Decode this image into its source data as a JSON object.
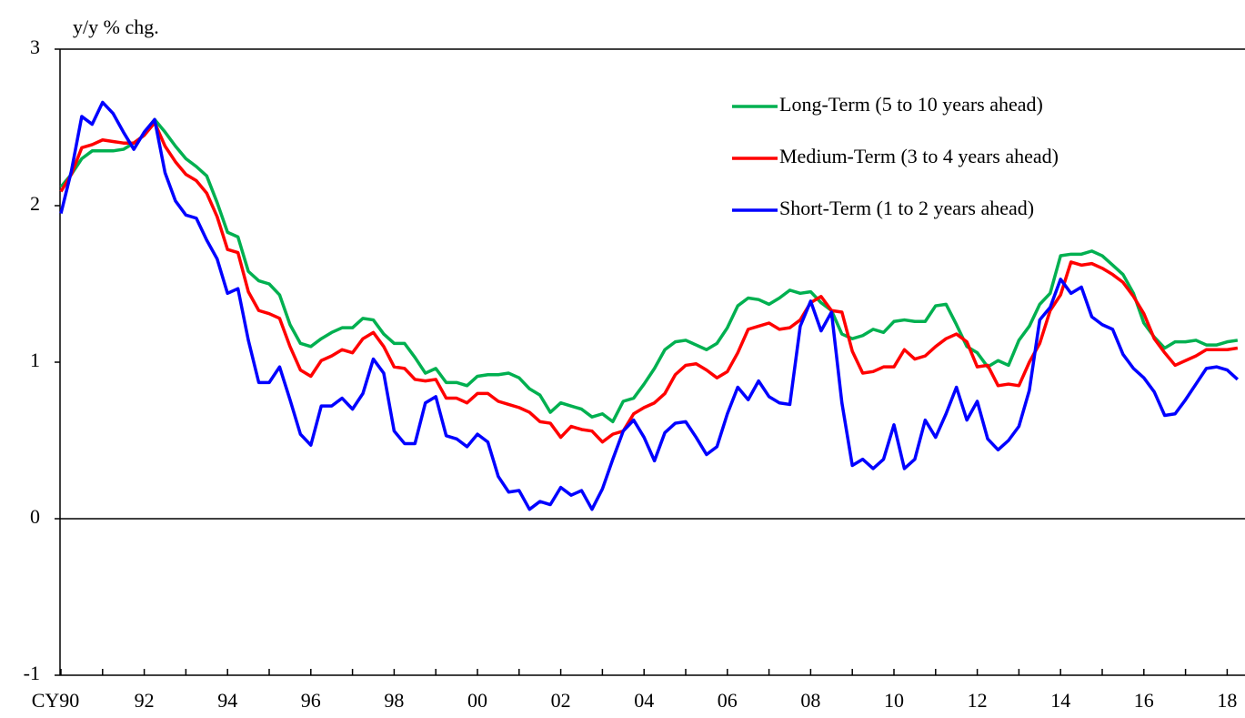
{
  "chart_data": {
    "type": "line",
    "y_label": "y/y % chg.",
    "ylim": [
      -1,
      3
    ],
    "yticks": [
      -1,
      0,
      1,
      2,
      3
    ],
    "legend": "upper right",
    "categories": [
      "CY90",
      null,
      null,
      null,
      null,
      null,
      null,
      null,
      "92",
      null,
      null,
      null,
      null,
      null,
      null,
      null,
      "94",
      null,
      null,
      null,
      null,
      null,
      null,
      null,
      "96",
      null,
      null,
      null,
      null,
      null,
      null,
      null,
      "98",
      null,
      null,
      null,
      null,
      null,
      null,
      null,
      "00",
      null,
      null,
      null,
      null,
      null,
      null,
      null,
      "02",
      null,
      null,
      null,
      null,
      null,
      null,
      null,
      "04",
      null,
      null,
      null,
      null,
      null,
      null,
      null,
      "06",
      null,
      null,
      null,
      null,
      null,
      null,
      null,
      "08",
      null,
      null,
      null,
      null,
      null,
      null,
      null,
      "10",
      null,
      null,
      null,
      null,
      null,
      null,
      null,
      "12",
      null,
      null,
      null,
      null,
      null,
      null,
      null,
      "14",
      null,
      null,
      null,
      null,
      null,
      null,
      null,
      "16",
      null,
      null,
      null,
      null,
      null,
      null,
      null,
      "18",
      null
    ],
    "series": [
      {
        "name": "Long-Term (5 to 10 years ahead)",
        "color": "#00b050",
        "values": [
          2.12,
          2.2,
          2.3,
          2.35,
          2.35,
          2.35,
          2.36,
          2.4,
          2.45,
          2.55,
          2.47,
          2.38,
          2.3,
          2.25,
          2.19,
          2.02,
          1.83,
          1.8,
          1.58,
          1.52,
          1.5,
          1.43,
          1.24,
          1.12,
          1.1,
          1.15,
          1.19,
          1.22,
          1.22,
          1.28,
          1.27,
          1.18,
          1.12,
          1.12,
          1.03,
          0.93,
          0.96,
          0.87,
          0.87,
          0.85,
          0.91,
          0.92,
          0.92,
          0.93,
          0.9,
          0.83,
          0.79,
          0.68,
          0.74,
          0.72,
          0.7,
          0.65,
          0.67,
          0.62,
          0.75,
          0.77,
          0.86,
          0.96,
          1.08,
          1.13,
          1.14,
          1.11,
          1.08,
          1.12,
          1.22,
          1.36,
          1.41,
          1.4,
          1.37,
          1.41,
          1.46,
          1.44,
          1.45,
          1.38,
          1.33,
          1.18,
          1.15,
          1.17,
          1.21,
          1.19,
          1.26,
          1.27,
          1.26,
          1.26,
          1.36,
          1.37,
          1.24,
          1.1,
          1.06,
          0.97,
          1.01,
          0.98,
          1.14,
          1.23,
          1.37,
          1.44,
          1.68,
          1.69,
          1.69,
          1.71,
          1.68,
          1.62,
          1.56,
          1.44,
          1.25,
          1.16,
          1.09,
          1.13,
          1.13,
          1.14,
          1.11,
          1.11,
          1.13,
          1.14
        ]
      },
      {
        "name": "Medium-Term (3 to 4 years ahead)",
        "color": "#ff0000",
        "values": [
          2.09,
          2.2,
          2.37,
          2.39,
          2.42,
          2.41,
          2.4,
          2.4,
          2.45,
          2.53,
          2.38,
          2.28,
          2.2,
          2.16,
          2.08,
          1.93,
          1.72,
          1.7,
          1.45,
          1.33,
          1.31,
          1.28,
          1.1,
          0.95,
          0.91,
          1.01,
          1.04,
          1.08,
          1.06,
          1.15,
          1.19,
          1.1,
          0.97,
          0.96,
          0.89,
          0.88,
          0.89,
          0.77,
          0.77,
          0.74,
          0.8,
          0.8,
          0.75,
          0.73,
          0.71,
          0.68,
          0.62,
          0.61,
          0.52,
          0.59,
          0.57,
          0.56,
          0.49,
          0.54,
          0.56,
          0.67,
          0.71,
          0.74,
          0.8,
          0.92,
          0.98,
          0.99,
          0.95,
          0.9,
          0.94,
          1.06,
          1.21,
          1.23,
          1.25,
          1.21,
          1.22,
          1.27,
          1.38,
          1.42,
          1.33,
          1.32,
          1.07,
          0.93,
          0.94,
          0.97,
          0.97,
          1.08,
          1.02,
          1.04,
          1.1,
          1.15,
          1.18,
          1.13,
          0.97,
          0.98,
          0.85,
          0.86,
          0.85,
          1.0,
          1.12,
          1.33,
          1.43,
          1.64,
          1.62,
          1.63,
          1.6,
          1.56,
          1.51,
          1.42,
          1.31,
          1.15,
          1.06,
          0.98,
          1.01,
          1.04,
          1.08,
          1.08,
          1.08,
          1.09
        ]
      },
      {
        "name": "Short-Term (1 to 2 years ahead)",
        "color": "#0000ff",
        "values": [
          1.95,
          2.22,
          2.57,
          2.52,
          2.66,
          2.59,
          2.47,
          2.36,
          2.47,
          2.55,
          2.21,
          2.03,
          1.94,
          1.92,
          1.78,
          1.66,
          1.44,
          1.47,
          1.14,
          0.87,
          0.87,
          0.97,
          0.76,
          0.54,
          0.47,
          0.72,
          0.72,
          0.77,
          0.7,
          0.8,
          1.02,
          0.93,
          0.56,
          0.48,
          0.48,
          0.74,
          0.78,
          0.53,
          0.51,
          0.46,
          0.54,
          0.49,
          0.27,
          0.17,
          0.18,
          0.06,
          0.11,
          0.09,
          0.2,
          0.15,
          0.18,
          0.06,
          0.19,
          0.38,
          0.56,
          0.63,
          0.52,
          0.37,
          0.55,
          0.61,
          0.62,
          0.52,
          0.41,
          0.46,
          0.67,
          0.84,
          0.76,
          0.88,
          0.78,
          0.74,
          0.73,
          1.23,
          1.39,
          1.2,
          1.32,
          0.74,
          0.34,
          0.38,
          0.32,
          0.38,
          0.6,
          0.32,
          0.38,
          0.63,
          0.52,
          0.67,
          0.84,
          0.63,
          0.75,
          0.51,
          0.44,
          0.5,
          0.59,
          0.82,
          1.27,
          1.35,
          1.53,
          1.44,
          1.48,
          1.29,
          1.24,
          1.21,
          1.05,
          0.96,
          0.9,
          0.81,
          0.66,
          0.67,
          0.76,
          0.86,
          0.96,
          0.97,
          0.95,
          0.89
        ]
      }
    ]
  }
}
